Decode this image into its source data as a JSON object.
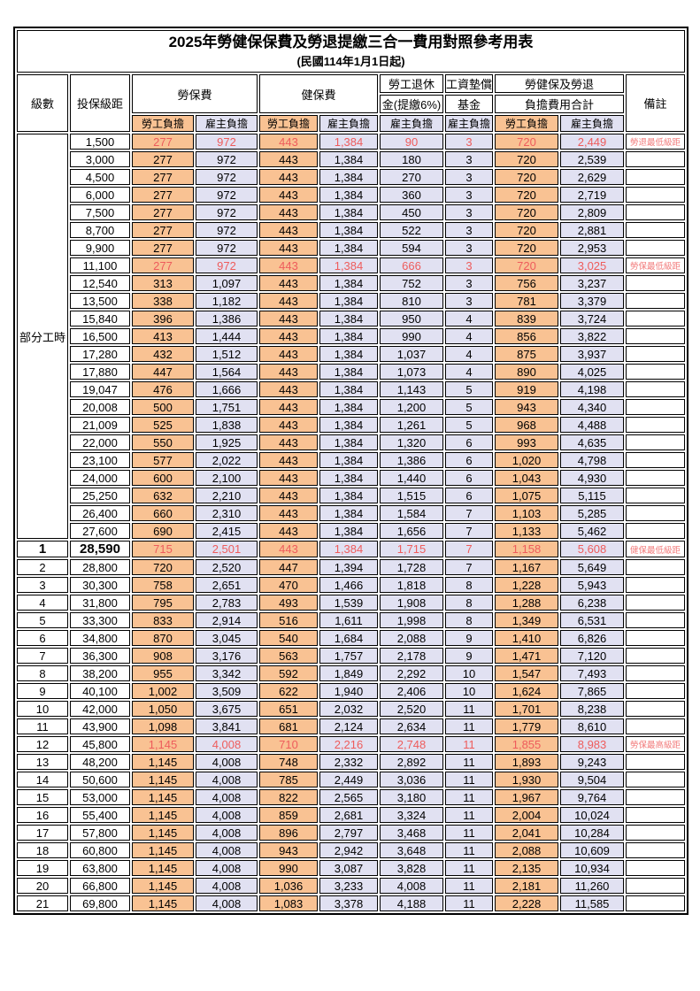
{
  "title": "2025年勞健保保費及勞退提繳三合一費用對照參考用表",
  "subtitle": "(民國114年1月1日起)",
  "header": {
    "level": "級數",
    "bracket": "投保級距",
    "labor_insurance": "勞保費",
    "health_insurance": "健保費",
    "pension_line1": "勞工退休",
    "pension_line2": "金(提繳6%)",
    "wage_fund_line1": "工資墊償",
    "wage_fund_line2": "基金",
    "total_line1": "勞健保及勞退",
    "total_line2": "負擔費用合計",
    "remark": "備註",
    "worker_burden": "勞工負擔",
    "employer_burden": "雇主負擔"
  },
  "colors": {
    "worker_bg": "#F9C293",
    "employer_bg": "#E1E1F2",
    "highlight_text": "#EE5C5C",
    "remark_text": "#F27B7B"
  },
  "table": {
    "part_time_label": "部分工時",
    "part_time_rowspan": 23,
    "columns_order": [
      "level",
      "bracket",
      "labor_worker",
      "labor_employer",
      "health_worker",
      "health_employer",
      "pension_employer",
      "wage_fund_employer",
      "total_worker",
      "total_employer",
      "remark",
      "flags"
    ],
    "rows": [
      [
        "",
        "1,500",
        "277",
        "972",
        "443",
        "1,384",
        "90",
        "3",
        "720",
        "2,449",
        "勞退最低級距",
        "red"
      ],
      [
        "",
        "3,000",
        "277",
        "972",
        "443",
        "1,384",
        "180",
        "3",
        "720",
        "2,539",
        "",
        ""
      ],
      [
        "",
        "4,500",
        "277",
        "972",
        "443",
        "1,384",
        "270",
        "3",
        "720",
        "2,629",
        "",
        ""
      ],
      [
        "",
        "6,000",
        "277",
        "972",
        "443",
        "1,384",
        "360",
        "3",
        "720",
        "2,719",
        "",
        ""
      ],
      [
        "",
        "7,500",
        "277",
        "972",
        "443",
        "1,384",
        "450",
        "3",
        "720",
        "2,809",
        "",
        ""
      ],
      [
        "",
        "8,700",
        "277",
        "972",
        "443",
        "1,384",
        "522",
        "3",
        "720",
        "2,881",
        "",
        ""
      ],
      [
        "",
        "9,900",
        "277",
        "972",
        "443",
        "1,384",
        "594",
        "3",
        "720",
        "2,953",
        "",
        ""
      ],
      [
        "",
        "11,100",
        "277",
        "972",
        "443",
        "1,384",
        "666",
        "3",
        "720",
        "3,025",
        "勞保最低級距",
        "red"
      ],
      [
        "",
        "12,540",
        "313",
        "1,097",
        "443",
        "1,384",
        "752",
        "3",
        "756",
        "3,237",
        "",
        ""
      ],
      [
        "",
        "13,500",
        "338",
        "1,182",
        "443",
        "1,384",
        "810",
        "3",
        "781",
        "3,379",
        "",
        ""
      ],
      [
        "",
        "15,840",
        "396",
        "1,386",
        "443",
        "1,384",
        "950",
        "4",
        "839",
        "3,724",
        "",
        ""
      ],
      [
        "",
        "16,500",
        "413",
        "1,444",
        "443",
        "1,384",
        "990",
        "4",
        "856",
        "3,822",
        "",
        ""
      ],
      [
        "",
        "17,280",
        "432",
        "1,512",
        "443",
        "1,384",
        "1,037",
        "4",
        "875",
        "3,937",
        "",
        ""
      ],
      [
        "",
        "17,880",
        "447",
        "1,564",
        "443",
        "1,384",
        "1,073",
        "4",
        "890",
        "4,025",
        "",
        ""
      ],
      [
        "",
        "19,047",
        "476",
        "1,666",
        "443",
        "1,384",
        "1,143",
        "5",
        "919",
        "4,198",
        "",
        ""
      ],
      [
        "",
        "20,008",
        "500",
        "1,751",
        "443",
        "1,384",
        "1,200",
        "5",
        "943",
        "4,340",
        "",
        ""
      ],
      [
        "",
        "21,009",
        "525",
        "1,838",
        "443",
        "1,384",
        "1,261",
        "5",
        "968",
        "4,488",
        "",
        ""
      ],
      [
        "",
        "22,000",
        "550",
        "1,925",
        "443",
        "1,384",
        "1,320",
        "6",
        "993",
        "4,635",
        "",
        ""
      ],
      [
        "",
        "23,100",
        "577",
        "2,022",
        "443",
        "1,384",
        "1,386",
        "6",
        "1,020",
        "4,798",
        "",
        ""
      ],
      [
        "",
        "24,000",
        "600",
        "2,100",
        "443",
        "1,384",
        "1,440",
        "6",
        "1,043",
        "4,930",
        "",
        ""
      ],
      [
        "",
        "25,250",
        "632",
        "2,210",
        "443",
        "1,384",
        "1,515",
        "6",
        "1,075",
        "5,115",
        "",
        ""
      ],
      [
        "",
        "26,400",
        "660",
        "2,310",
        "443",
        "1,384",
        "1,584",
        "7",
        "1,103",
        "5,285",
        "",
        ""
      ],
      [
        "",
        "27,600",
        "690",
        "2,415",
        "443",
        "1,384",
        "1,656",
        "7",
        "1,133",
        "5,462",
        "",
        ""
      ],
      [
        "1",
        "28,590",
        "715",
        "2,501",
        "443",
        "1,384",
        "1,715",
        "7",
        "1,158",
        "5,608",
        "健保最低級距",
        "red emph"
      ],
      [
        "2",
        "28,800",
        "720",
        "2,520",
        "447",
        "1,394",
        "1,728",
        "7",
        "1,167",
        "5,649",
        "",
        ""
      ],
      [
        "3",
        "30,300",
        "758",
        "2,651",
        "470",
        "1,466",
        "1,818",
        "8",
        "1,228",
        "5,943",
        "",
        ""
      ],
      [
        "4",
        "31,800",
        "795",
        "2,783",
        "493",
        "1,539",
        "1,908",
        "8",
        "1,288",
        "6,238",
        "",
        ""
      ],
      [
        "5",
        "33,300",
        "833",
        "2,914",
        "516",
        "1,611",
        "1,998",
        "8",
        "1,349",
        "6,531",
        "",
        ""
      ],
      [
        "6",
        "34,800",
        "870",
        "3,045",
        "540",
        "1,684",
        "2,088",
        "9",
        "1,410",
        "6,826",
        "",
        ""
      ],
      [
        "7",
        "36,300",
        "908",
        "3,176",
        "563",
        "1,757",
        "2,178",
        "9",
        "1,471",
        "7,120",
        "",
        ""
      ],
      [
        "8",
        "38,200",
        "955",
        "3,342",
        "592",
        "1,849",
        "2,292",
        "10",
        "1,547",
        "7,493",
        "",
        ""
      ],
      [
        "9",
        "40,100",
        "1,002",
        "3,509",
        "622",
        "1,940",
        "2,406",
        "10",
        "1,624",
        "7,865",
        "",
        ""
      ],
      [
        "10",
        "42,000",
        "1,050",
        "3,675",
        "651",
        "2,032",
        "2,520",
        "11",
        "1,701",
        "8,238",
        "",
        ""
      ],
      [
        "11",
        "43,900",
        "1,098",
        "3,841",
        "681",
        "2,124",
        "2,634",
        "11",
        "1,779",
        "8,610",
        "",
        ""
      ],
      [
        "12",
        "45,800",
        "1,145",
        "4,008",
        "710",
        "2,216",
        "2,748",
        "11",
        "1,855",
        "8,983",
        "勞保最高級距",
        "red"
      ],
      [
        "13",
        "48,200",
        "1,145",
        "4,008",
        "748",
        "2,332",
        "2,892",
        "11",
        "1,893",
        "9,243",
        "",
        ""
      ],
      [
        "14",
        "50,600",
        "1,145",
        "4,008",
        "785",
        "2,449",
        "3,036",
        "11",
        "1,930",
        "9,504",
        "",
        ""
      ],
      [
        "15",
        "53,000",
        "1,145",
        "4,008",
        "822",
        "2,565",
        "3,180",
        "11",
        "1,967",
        "9,764",
        "",
        ""
      ],
      [
        "16",
        "55,400",
        "1,145",
        "4,008",
        "859",
        "2,681",
        "3,324",
        "11",
        "2,004",
        "10,024",
        "",
        ""
      ],
      [
        "17",
        "57,800",
        "1,145",
        "4,008",
        "896",
        "2,797",
        "3,468",
        "11",
        "2,041",
        "10,284",
        "",
        ""
      ],
      [
        "18",
        "60,800",
        "1,145",
        "4,008",
        "943",
        "2,942",
        "3,648",
        "11",
        "2,088",
        "10,609",
        "",
        ""
      ],
      [
        "19",
        "63,800",
        "1,145",
        "4,008",
        "990",
        "3,087",
        "3,828",
        "11",
        "2,135",
        "10,934",
        "",
        ""
      ],
      [
        "20",
        "66,800",
        "1,145",
        "4,008",
        "1,036",
        "3,233",
        "4,008",
        "11",
        "2,181",
        "11,260",
        "",
        ""
      ],
      [
        "21",
        "69,800",
        "1,145",
        "4,008",
        "1,083",
        "3,378",
        "4,188",
        "11",
        "2,228",
        "11,585",
        "",
        ""
      ]
    ]
  }
}
